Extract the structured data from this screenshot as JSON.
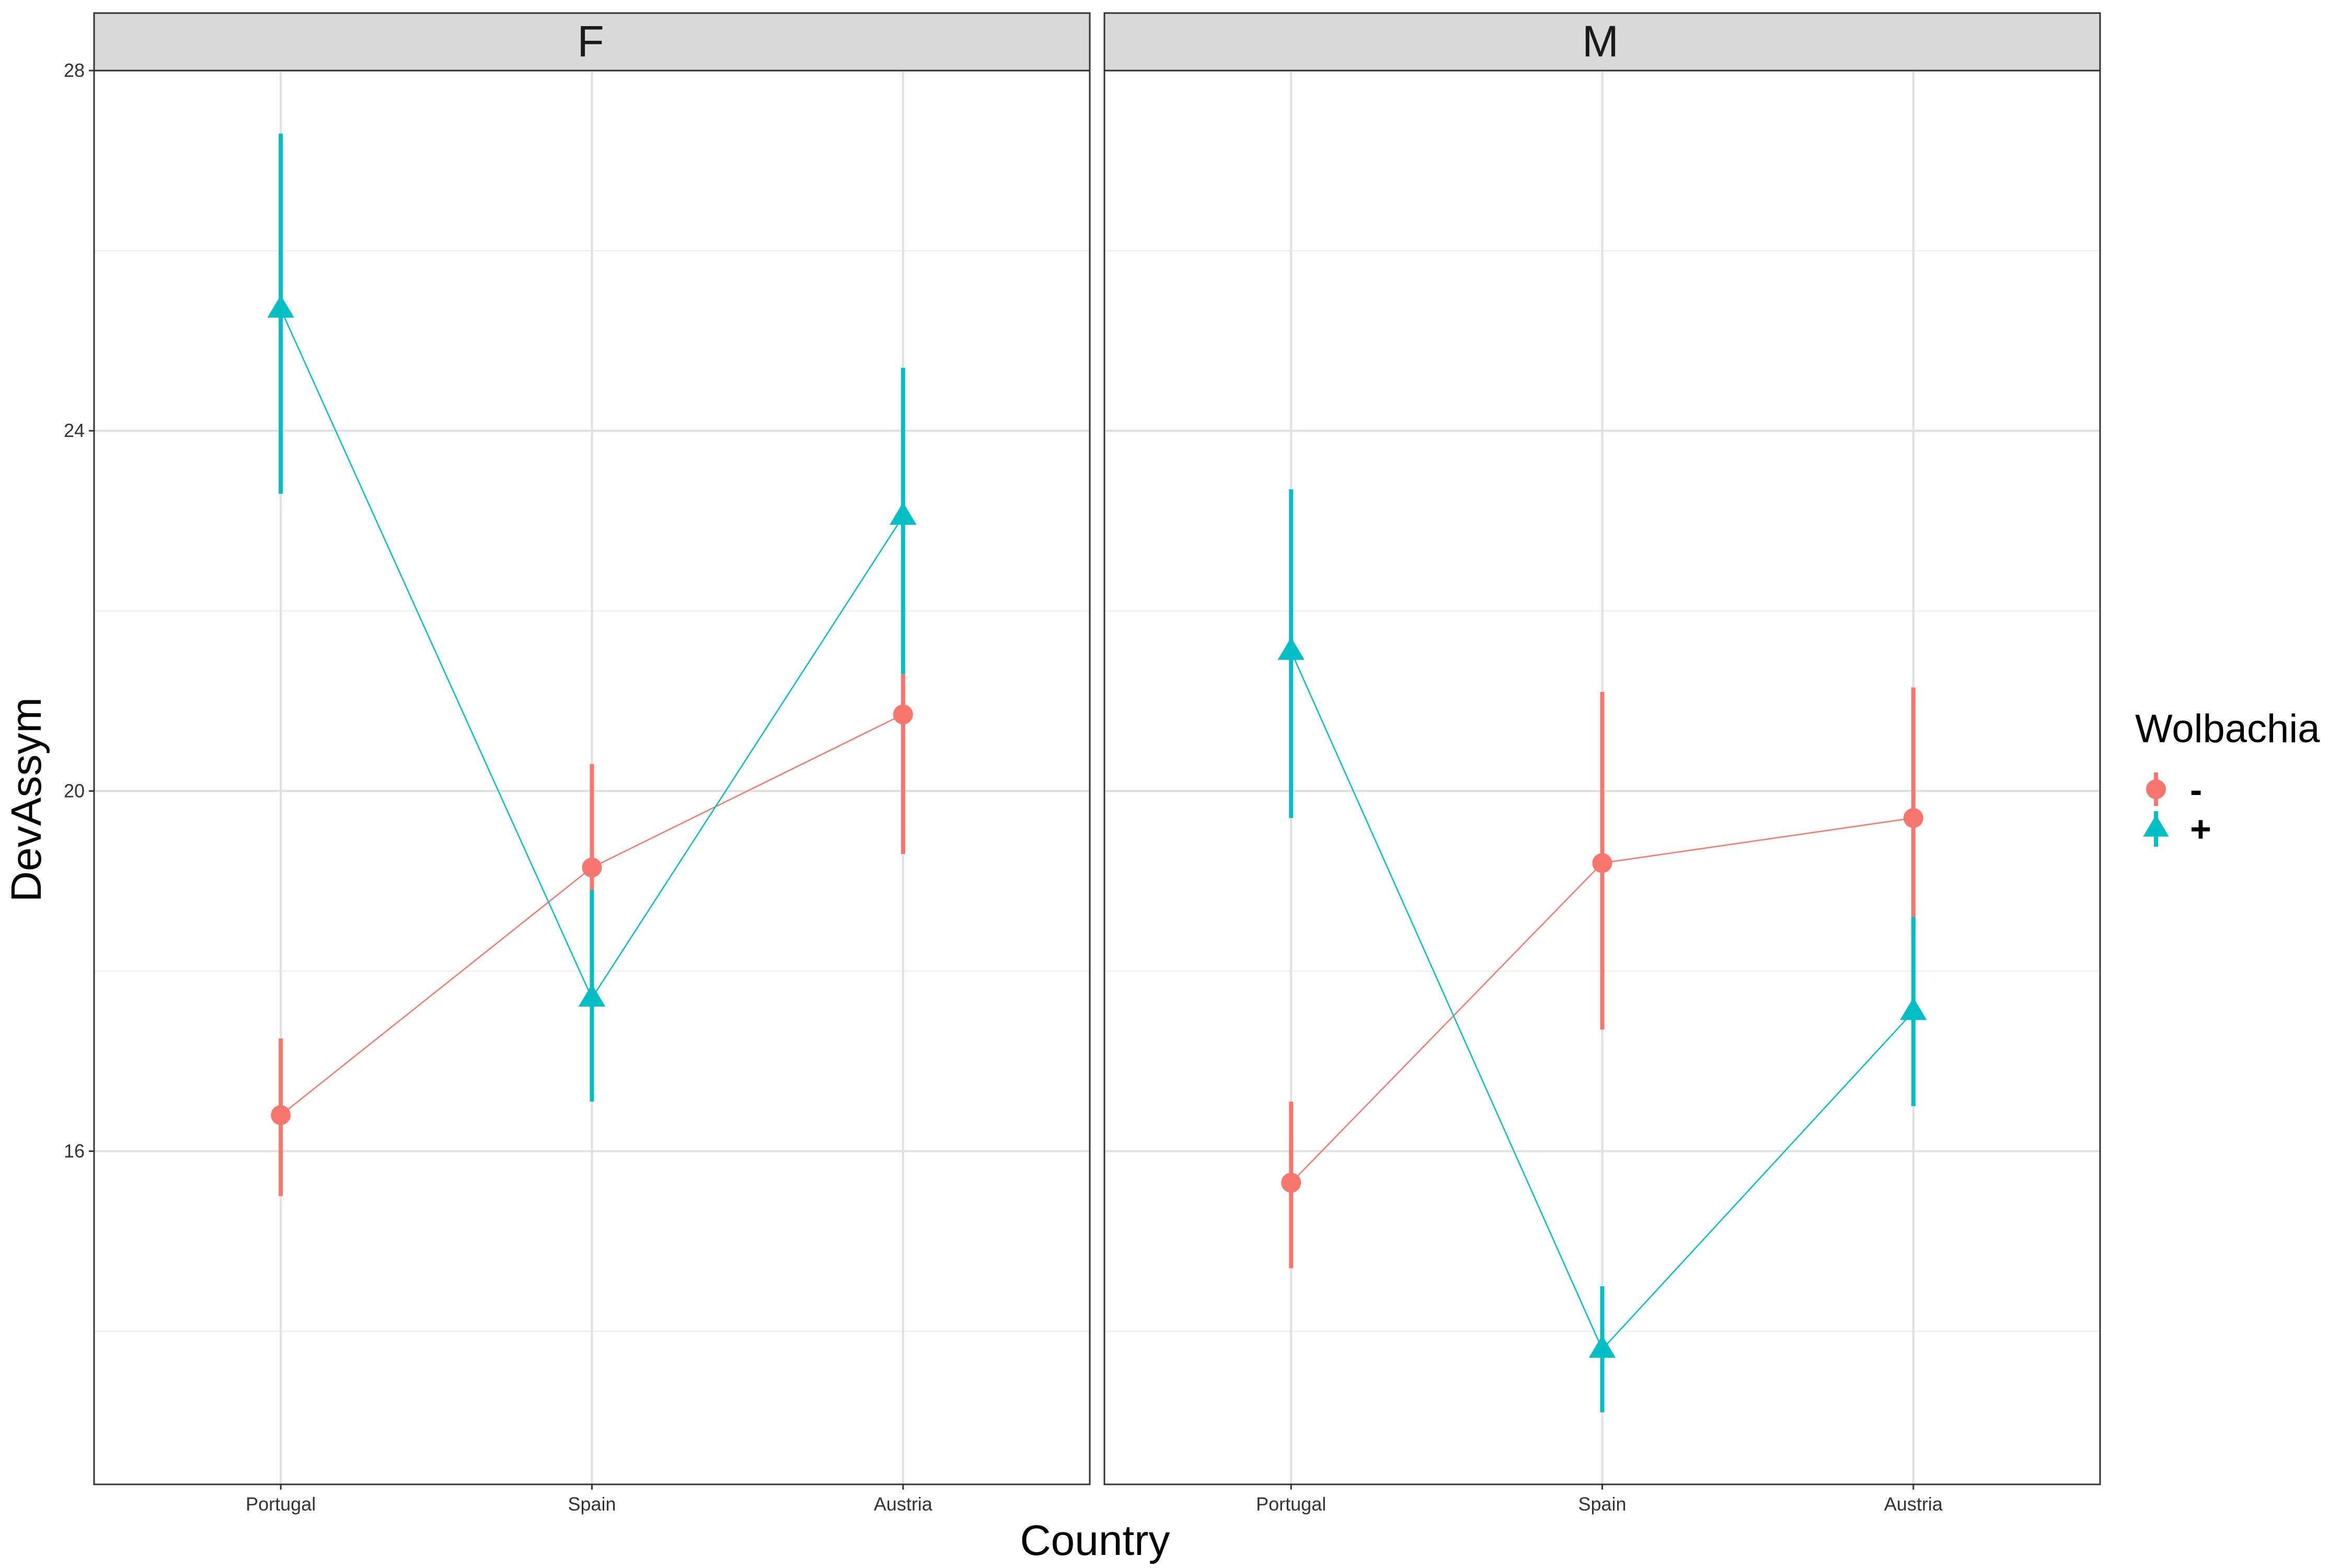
{
  "chart_data": {
    "type": "line",
    "xlabel": "Country",
    "ylabel": "DevAssym",
    "categories": [
      "Portugal",
      "Spain",
      "Austria"
    ],
    "ylim": [
      12.3,
      28
    ],
    "yticks": [
      16,
      20,
      24,
      28
    ],
    "ygrid_minor": [
      14,
      18,
      22,
      26
    ],
    "grid": true,
    "legend": {
      "title": "Wolbachia",
      "position": "right",
      "entries": [
        {
          "label": "-",
          "color": "#F8766D",
          "shape": "circle"
        },
        {
          "label": "+",
          "color": "#00BFC4",
          "shape": "triangle"
        }
      ]
    },
    "panels": [
      {
        "strip": "F",
        "series": [
          {
            "name": "-",
            "color": "#F8766D",
            "shape": "circle",
            "values": [
              16.4,
              19.15,
              20.85
            ],
            "lower": [
              15.5,
              18.0,
              19.3
            ],
            "upper": [
              17.25,
              20.3,
              21.3
            ]
          },
          {
            "name": "+",
            "color": "#00BFC4",
            "shape": "triangle",
            "values": [
              25.35,
              17.7,
              23.05
            ],
            "lower": [
              23.3,
              16.55,
              21.3
            ],
            "upper": [
              27.3,
              18.9,
              24.7
            ]
          }
        ]
      },
      {
        "strip": "M",
        "series": [
          {
            "name": "-",
            "color": "#F8766D",
            "shape": "circle",
            "values": [
              15.65,
              19.2,
              19.7
            ],
            "lower": [
              14.7,
              17.35,
              18.4
            ],
            "upper": [
              16.55,
              21.1,
              21.15
            ]
          },
          {
            "name": "+",
            "color": "#00BFC4",
            "shape": "triangle",
            "values": [
              21.55,
              13.8,
              17.55
            ],
            "lower": [
              19.7,
              13.1,
              16.5
            ],
            "upper": [
              23.35,
              14.5,
              18.6
            ]
          }
        ]
      }
    ]
  }
}
